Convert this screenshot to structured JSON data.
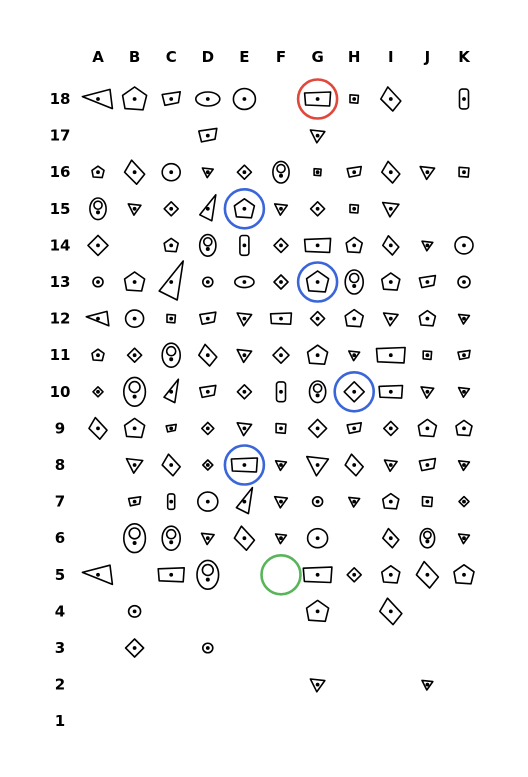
{
  "columns": [
    "A",
    "B",
    "C",
    "D",
    "E",
    "F",
    "G",
    "H",
    "I",
    "J",
    "K"
  ],
  "rows": [
    "18",
    "17",
    "16",
    "15",
    "14",
    "13",
    "12",
    "11",
    "10",
    "9",
    "8",
    "7",
    "6",
    "5",
    "4",
    "3",
    "2",
    "1"
  ],
  "colors": {
    "start": "#59b55a",
    "hand": "#3a66d9",
    "finish": "#e0483c",
    "ink": "#000000"
  },
  "holds": [
    {
      "c": "A",
      "r": "18",
      "shape": "flag",
      "s": 1.2
    },
    {
      "c": "B",
      "r": "18",
      "shape": "pentagon",
      "s": 1.2
    },
    {
      "c": "C",
      "r": "18",
      "shape": "slant",
      "s": 0.9
    },
    {
      "c": "D",
      "r": "18",
      "shape": "oval",
      "s": 1
    },
    {
      "c": "E",
      "r": "18",
      "shape": "round",
      "s": 1.1
    },
    {
      "c": "G",
      "r": "18",
      "shape": "rect",
      "s": 1
    },
    {
      "c": "H",
      "r": "18",
      "shape": "square",
      "s": 0.6
    },
    {
      "c": "I",
      "r": "18",
      "shape": "tilt",
      "s": 1
    },
    {
      "c": "K",
      "r": "18",
      "shape": "tall",
      "s": 0.9
    },
    {
      "c": "D",
      "r": "17",
      "shape": "slant",
      "s": 0.9
    },
    {
      "c": "G",
      "r": "17",
      "shape": "tri",
      "s": 0.8
    },
    {
      "c": "A",
      "r": "16",
      "shape": "pentagon",
      "s": 0.6
    },
    {
      "c": "B",
      "r": "16",
      "shape": "tilt",
      "s": 1
    },
    {
      "c": "C",
      "r": "16",
      "shape": "round",
      "s": 0.9
    },
    {
      "c": "D",
      "r": "16",
      "shape": "tri",
      "s": 0.6
    },
    {
      "c": "E",
      "r": "16",
      "shape": "diamond",
      "s": 0.7
    },
    {
      "c": "F",
      "r": "16",
      "shape": "double",
      "s": 0.9
    },
    {
      "c": "G",
      "r": "16",
      "shape": "square",
      "s": 0.5
    },
    {
      "c": "H",
      "r": "16",
      "shape": "slant",
      "s": 0.7
    },
    {
      "c": "I",
      "r": "16",
      "shape": "tilt",
      "s": 0.9
    },
    {
      "c": "J",
      "r": "16",
      "shape": "tri",
      "s": 0.8
    },
    {
      "c": "K",
      "r": "16",
      "shape": "square",
      "s": 0.7
    },
    {
      "c": "A",
      "r": "15",
      "shape": "double",
      "s": 0.9
    },
    {
      "c": "B",
      "r": "15",
      "shape": "tri",
      "s": 0.7
    },
    {
      "c": "C",
      "r": "15",
      "shape": "diamond",
      "s": 0.7
    },
    {
      "c": "D",
      "r": "15",
      "shape": "blade",
      "s": 1
    },
    {
      "c": "E",
      "r": "15",
      "shape": "pentagon",
      "s": 1
    },
    {
      "c": "F",
      "r": "15",
      "shape": "tri",
      "s": 0.7
    },
    {
      "c": "G",
      "r": "15",
      "shape": "diamond",
      "s": 0.7
    },
    {
      "c": "H",
      "r": "15",
      "shape": "square",
      "s": 0.6
    },
    {
      "c": "I",
      "r": "15",
      "shape": "tri",
      "s": 0.9
    },
    {
      "c": "A",
      "r": "14",
      "shape": "diamond",
      "s": 1
    },
    {
      "c": "C",
      "r": "14",
      "shape": "pentagon",
      "s": 0.7
    },
    {
      "c": "D",
      "r": "14",
      "shape": "double",
      "s": 0.9
    },
    {
      "c": "E",
      "r": "14",
      "shape": "tall",
      "s": 0.9
    },
    {
      "c": "F",
      "r": "14",
      "shape": "diamond",
      "s": 0.7
    },
    {
      "c": "G",
      "r": "14",
      "shape": "rect",
      "s": 1
    },
    {
      "c": "H",
      "r": "14",
      "shape": "pentagon",
      "s": 0.8
    },
    {
      "c": "I",
      "r": "14",
      "shape": "tilt",
      "s": 0.8
    },
    {
      "c": "J",
      "r": "14",
      "shape": "tri",
      "s": 0.6
    },
    {
      "c": "K",
      "r": "14",
      "shape": "round",
      "s": 0.9
    },
    {
      "c": "A",
      "r": "13",
      "shape": "round",
      "s": 0.5
    },
    {
      "c": "B",
      "r": "13",
      "shape": "pentagon",
      "s": 1
    },
    {
      "c": "C",
      "r": "13",
      "shape": "blade",
      "s": 1.5
    },
    {
      "c": "D",
      "r": "13",
      "shape": "round",
      "s": 0.5
    },
    {
      "c": "E",
      "r": "13",
      "shape": "oval",
      "s": 0.8
    },
    {
      "c": "F",
      "r": "13",
      "shape": "diamond",
      "s": 0.7
    },
    {
      "c": "G",
      "r": "13",
      "shape": "pentagon",
      "s": 1.1
    },
    {
      "c": "H",
      "r": "13",
      "shape": "double",
      "s": 1
    },
    {
      "c": "I",
      "r": "13",
      "shape": "pentagon",
      "s": 0.9
    },
    {
      "c": "J",
      "r": "13",
      "shape": "slant",
      "s": 0.8
    },
    {
      "c": "K",
      "r": "13",
      "shape": "round",
      "s": 0.6
    },
    {
      "c": "A",
      "r": "12",
      "shape": "flag",
      "s": 0.9
    },
    {
      "c": "B",
      "r": "12",
      "shape": "round",
      "s": 0.9
    },
    {
      "c": "C",
      "r": "12",
      "shape": "square",
      "s": 0.6
    },
    {
      "c": "D",
      "r": "12",
      "shape": "slant",
      "s": 0.8
    },
    {
      "c": "E",
      "r": "12",
      "shape": "tri",
      "s": 0.8
    },
    {
      "c": "F",
      "r": "12",
      "shape": "rect",
      "s": 0.8
    },
    {
      "c": "G",
      "r": "12",
      "shape": "diamond",
      "s": 0.7
    },
    {
      "c": "H",
      "r": "12",
      "shape": "pentagon",
      "s": 0.9
    },
    {
      "c": "I",
      "r": "12",
      "shape": "tri",
      "s": 0.8
    },
    {
      "c": "J",
      "r": "12",
      "shape": "pentagon",
      "s": 0.8
    },
    {
      "c": "K",
      "r": "12",
      "shape": "tri",
      "s": 0.6
    },
    {
      "c": "A",
      "r": "11",
      "shape": "pentagon",
      "s": 0.6
    },
    {
      "c": "B",
      "r": "11",
      "shape": "diamond",
      "s": 0.7
    },
    {
      "c": "C",
      "r": "11",
      "shape": "double",
      "s": 1
    },
    {
      "c": "D",
      "r": "11",
      "shape": "tilt",
      "s": 0.9
    },
    {
      "c": "E",
      "r": "11",
      "shape": "tri",
      "s": 0.8
    },
    {
      "c": "F",
      "r": "11",
      "shape": "diamond",
      "s": 0.8
    },
    {
      "c": "G",
      "r": "11",
      "shape": "pentagon",
      "s": 1
    },
    {
      "c": "H",
      "r": "11",
      "shape": "tri",
      "s": 0.6
    },
    {
      "c": "I",
      "r": "11",
      "shape": "rect",
      "s": 1.1
    },
    {
      "c": "J",
      "r": "11",
      "shape": "square",
      "s": 0.6
    },
    {
      "c": "K",
      "r": "11",
      "shape": "slant",
      "s": 0.6
    },
    {
      "c": "A",
      "r": "10",
      "shape": "diamond",
      "s": 0.5
    },
    {
      "c": "B",
      "r": "10",
      "shape": "double",
      "s": 1.2
    },
    {
      "c": "C",
      "r": "10",
      "shape": "blade",
      "s": 0.9
    },
    {
      "c": "D",
      "r": "10",
      "shape": "slant",
      "s": 0.8
    },
    {
      "c": "E",
      "r": "10",
      "shape": "diamond",
      "s": 0.7
    },
    {
      "c": "F",
      "r": "10",
      "shape": "tall",
      "s": 0.9
    },
    {
      "c": "G",
      "r": "10",
      "shape": "double",
      "s": 0.9
    },
    {
      "c": "H",
      "r": "10",
      "shape": "diamond",
      "s": 1
    },
    {
      "c": "I",
      "r": "10",
      "shape": "rect",
      "s": 0.9
    },
    {
      "c": "J",
      "r": "10",
      "shape": "tri",
      "s": 0.7
    },
    {
      "c": "K",
      "r": "10",
      "shape": "tri",
      "s": 0.6
    },
    {
      "c": "A",
      "r": "9",
      "shape": "tilt",
      "s": 0.9
    },
    {
      "c": "B",
      "r": "9",
      "shape": "pentagon",
      "s": 1
    },
    {
      "c": "C",
      "r": "9",
      "shape": "slant",
      "s": 0.5
    },
    {
      "c": "D",
      "r": "9",
      "shape": "diamond",
      "s": 0.6
    },
    {
      "c": "E",
      "r": "9",
      "shape": "tri",
      "s": 0.8
    },
    {
      "c": "F",
      "r": "9",
      "shape": "square",
      "s": 0.7
    },
    {
      "c": "G",
      "r": "9",
      "shape": "diamond",
      "s": 0.9
    },
    {
      "c": "H",
      "r": "9",
      "shape": "slant",
      "s": 0.7
    },
    {
      "c": "I",
      "r": "9",
      "shape": "diamond",
      "s": 0.7
    },
    {
      "c": "J",
      "r": "9",
      "shape": "pentagon",
      "s": 0.9
    },
    {
      "c": "K",
      "r": "9",
      "shape": "pentagon",
      "s": 0.8
    },
    {
      "c": "B",
      "r": "8",
      "shape": "tri",
      "s": 0.9
    },
    {
      "c": "C",
      "r": "8",
      "shape": "tilt",
      "s": 0.9
    },
    {
      "c": "D",
      "r": "8",
      "shape": "diamond",
      "s": 0.5
    },
    {
      "c": "E",
      "r": "8",
      "shape": "rect",
      "s": 1
    },
    {
      "c": "F",
      "r": "8",
      "shape": "tri",
      "s": 0.6
    },
    {
      "c": "G",
      "r": "8",
      "shape": "tri",
      "s": 1.2
    },
    {
      "c": "H",
      "r": "8",
      "shape": "tilt",
      "s": 0.9
    },
    {
      "c": "I",
      "r": "8",
      "shape": "tri",
      "s": 0.7
    },
    {
      "c": "J",
      "r": "8",
      "shape": "slant",
      "s": 0.8
    },
    {
      "c": "K",
      "r": "8",
      "shape": "tri",
      "s": 0.6
    },
    {
      "c": "B",
      "r": "7",
      "shape": "slant",
      "s": 0.6
    },
    {
      "c": "C",
      "r": "7",
      "shape": "tall",
      "s": 0.7
    },
    {
      "c": "D",
      "r": "7",
      "shape": "round",
      "s": 1
    },
    {
      "c": "E",
      "r": "7",
      "shape": "blade",
      "s": 1
    },
    {
      "c": "F",
      "r": "7",
      "shape": "tri",
      "s": 0.7
    },
    {
      "c": "G",
      "r": "7",
      "shape": "round",
      "s": 0.5
    },
    {
      "c": "H",
      "r": "7",
      "shape": "tri",
      "s": 0.6
    },
    {
      "c": "I",
      "r": "7",
      "shape": "pentagon",
      "s": 0.8
    },
    {
      "c": "J",
      "r": "7",
      "shape": "square",
      "s": 0.7
    },
    {
      "c": "K",
      "r": "7",
      "shape": "diamond",
      "s": 0.5
    },
    {
      "c": "B",
      "r": "6",
      "shape": "double",
      "s": 1.2
    },
    {
      "c": "C",
      "r": "6",
      "shape": "double",
      "s": 1
    },
    {
      "c": "D",
      "r": "6",
      "shape": "tri",
      "s": 0.7
    },
    {
      "c": "E",
      "r": "6",
      "shape": "tilt",
      "s": 1
    },
    {
      "c": "F",
      "r": "6",
      "shape": "tri",
      "s": 0.6
    },
    {
      "c": "G",
      "r": "6",
      "shape": "round",
      "s": 1
    },
    {
      "c": "I",
      "r": "6",
      "shape": "tilt",
      "s": 0.8
    },
    {
      "c": "J",
      "r": "6",
      "shape": "double",
      "s": 0.8
    },
    {
      "c": "K",
      "r": "6",
      "shape": "tri",
      "s": 0.6
    },
    {
      "c": "A",
      "r": "5",
      "shape": "flag",
      "s": 1.2
    },
    {
      "c": "C",
      "r": "5",
      "shape": "rect",
      "s": 1
    },
    {
      "c": "D",
      "r": "5",
      "shape": "double",
      "s": 1.2
    },
    {
      "c": "G",
      "r": "5",
      "shape": "rect",
      "s": 1.1
    },
    {
      "c": "H",
      "r": "5",
      "shape": "diamond",
      "s": 0.7
    },
    {
      "c": "I",
      "r": "5",
      "shape": "pentagon",
      "s": 0.9
    },
    {
      "c": "J",
      "r": "5",
      "shape": "tilt",
      "s": 1.1
    },
    {
      "c": "K",
      "r": "5",
      "shape": "pentagon",
      "s": 1
    },
    {
      "c": "B",
      "r": "4",
      "shape": "round",
      "s": 0.6
    },
    {
      "c": "G",
      "r": "4",
      "shape": "pentagon",
      "s": 1.1
    },
    {
      "c": "I",
      "r": "4",
      "shape": "tilt",
      "s": 1.1
    },
    {
      "c": "B",
      "r": "3",
      "shape": "diamond",
      "s": 0.9
    },
    {
      "c": "D",
      "r": "3",
      "shape": "round",
      "s": 0.5
    },
    {
      "c": "G",
      "r": "2",
      "shape": "tri",
      "s": 0.8
    },
    {
      "c": "J",
      "r": "2",
      "shape": "tri",
      "s": 0.6
    }
  ],
  "markers": [
    {
      "c": "G",
      "r": "18",
      "kind": "finish"
    },
    {
      "c": "E",
      "r": "15",
      "kind": "hand"
    },
    {
      "c": "G",
      "r": "13",
      "kind": "hand"
    },
    {
      "c": "H",
      "r": "10",
      "kind": "hand"
    },
    {
      "c": "E",
      "r": "8",
      "kind": "hand"
    },
    {
      "c": "F",
      "r": "5",
      "kind": "start"
    }
  ]
}
